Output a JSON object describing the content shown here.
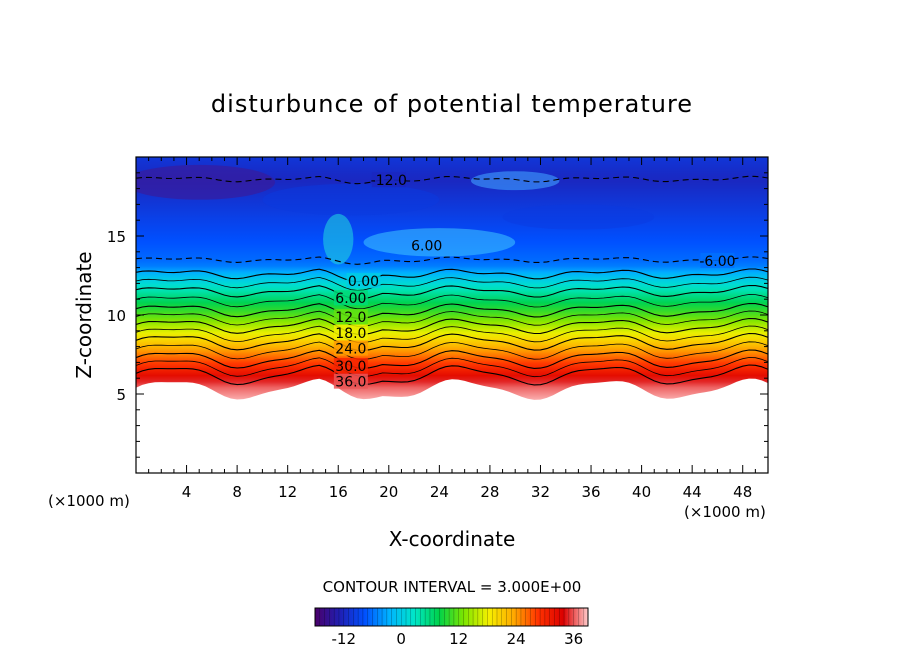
{
  "chart_data": {
    "type": "heatmap",
    "title": "disturbunce of potential temperature",
    "xlabel": "X-coordinate",
    "ylabel": "Z-coordinate",
    "x_unit_note": "(×1000 m)",
    "y_unit_note": "(×1000 m)",
    "xlim": [
      0,
      50
    ],
    "ylim": [
      0,
      20
    ],
    "x_ticks": [
      4,
      8,
      12,
      16,
      20,
      24,
      28,
      32,
      36,
      40,
      44,
      48
    ],
    "y_ticks": [
      5,
      10,
      15
    ],
    "x_tick_labels": [
      "4",
      "8",
      "12",
      "16",
      "20",
      "24",
      "28",
      "32",
      "36",
      "40",
      "44",
      "48"
    ],
    "y_tick_labels": [
      "5",
      "10",
      "15"
    ],
    "contour_interval_text": "CONTOUR INTERVAL = 3.000E+00",
    "contour_interval": 3,
    "negative_contours_dashed": true,
    "field_bottom_z": 5.3,
    "field_note": "Field is undefined (white) below about z = 5.3; values increase downward from about -12 aloft to about 38 near the lower boundary.",
    "colorbar": {
      "min": -18,
      "max": 39,
      "tick_values": [
        -12,
        0,
        12,
        24,
        36
      ],
      "tick_labels": [
        "-12",
        "0",
        "12",
        "24",
        "36"
      ],
      "color_stops": [
        "#4a006a",
        "#1f1fb4",
        "#0050ff",
        "#00b4ff",
        "#00e6c8",
        "#00d24a",
        "#7de600",
        "#f5f000",
        "#ffaa00",
        "#ff3200",
        "#dc0000",
        "#ffcccc"
      ]
    },
    "contour_levels": [
      {
        "value": -12,
        "z": 18.6,
        "label": "-12.0",
        "label_x": 20
      },
      {
        "value": -6,
        "z": 13.5,
        "label": "-6.00",
        "label_x": 46
      },
      {
        "value": 0,
        "z": 12.6,
        "label": "0.00",
        "label_x": 18
      },
      {
        "value": 6,
        "z": 11.5,
        "label": "6.00",
        "label_x": 17
      },
      {
        "value": 12,
        "z": 10.3,
        "label": "12.0",
        "label_x": 17
      },
      {
        "value": 18,
        "z": 9.3,
        "label": "18.0",
        "label_x": 17
      },
      {
        "value": 24,
        "z": 8.3,
        "label": "24.0",
        "label_x": 17
      },
      {
        "value": 30,
        "z": 7.2,
        "label": "30.0",
        "label_x": 17
      },
      {
        "value": 36,
        "z": 6.2,
        "label": "36.0",
        "label_x": 17
      }
    ],
    "extra_labels": [
      {
        "text": "6.00",
        "x": 23,
        "z": 14.4
      }
    ],
    "interior_contour_values": [
      3,
      9,
      15,
      21,
      27,
      33
    ]
  }
}
